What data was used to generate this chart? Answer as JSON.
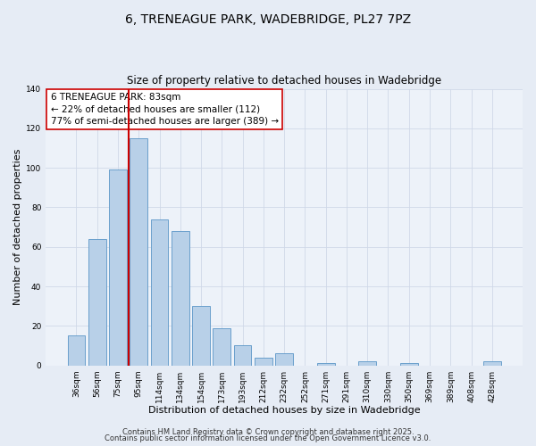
{
  "title": "6, TRENEAGUE PARK, WADEBRIDGE, PL27 7PZ",
  "subtitle": "Size of property relative to detached houses in Wadebridge",
  "xlabel": "Distribution of detached houses by size in Wadebridge",
  "ylabel": "Number of detached properties",
  "bar_labels": [
    "36sqm",
    "56sqm",
    "75sqm",
    "95sqm",
    "114sqm",
    "134sqm",
    "154sqm",
    "173sqm",
    "193sqm",
    "212sqm",
    "232sqm",
    "252sqm",
    "271sqm",
    "291sqm",
    "310sqm",
    "330sqm",
    "350sqm",
    "369sqm",
    "389sqm",
    "408sqm",
    "428sqm"
  ],
  "bar_values": [
    15,
    64,
    99,
    115,
    74,
    68,
    30,
    19,
    10,
    4,
    6,
    0,
    1,
    0,
    2,
    0,
    1,
    0,
    0,
    0,
    2
  ],
  "bar_color": "#b8d0e8",
  "bar_edge_color": "#6aa0cc",
  "vline_x": 2.5,
  "vline_color": "#cc0000",
  "ylim": [
    0,
    140
  ],
  "yticks": [
    0,
    20,
    40,
    60,
    80,
    100,
    120,
    140
  ],
  "annotation_box_text": "6 TRENEAGUE PARK: 83sqm\n← 22% of detached houses are smaller (112)\n77% of semi-detached houses are larger (389) →",
  "footer_line1": "Contains HM Land Registry data © Crown copyright and database right 2025.",
  "footer_line2": "Contains public sector information licensed under the Open Government Licence v3.0.",
  "bg_color": "#e6ecf5",
  "plot_bg_color": "#edf2f9",
  "grid_color": "#d0d8e8",
  "title_fontsize": 10,
  "subtitle_fontsize": 8.5,
  "axis_label_fontsize": 8,
  "tick_fontsize": 6.5,
  "footer_fontsize": 6,
  "ann_fontsize": 7.5
}
